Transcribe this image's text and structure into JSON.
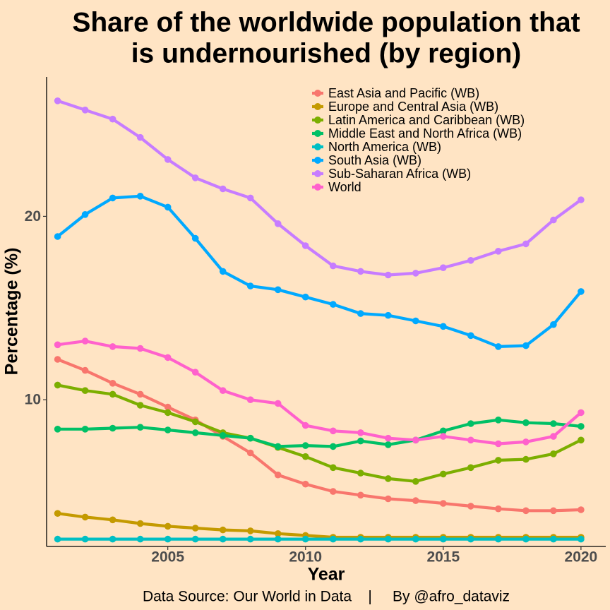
{
  "title_lines": [
    "Share of the worldwide population that",
    "is undernourished (by region)"
  ],
  "caption": "Data Source: Our World in Data    |     By @afro_dataviz",
  "chart_data": {
    "type": "line",
    "title": "Share of the worldwide population that is undernourished (by region)",
    "xlabel": "Year",
    "ylabel": "Percentage (%)",
    "xlim": [
      2000.6,
      2020.9
    ],
    "ylim": [
      2.0,
      27.6
    ],
    "x_ticks": [
      2005,
      2010,
      2015,
      2020
    ],
    "y_ticks": [
      10,
      20
    ],
    "grid": false,
    "legend_position": "top-right",
    "x": [
      2001,
      2002,
      2003,
      2004,
      2005,
      2006,
      2007,
      2008,
      2009,
      2010,
      2011,
      2012,
      2013,
      2014,
      2015,
      2016,
      2017,
      2018,
      2019,
      2020
    ],
    "series": [
      {
        "name": "East Asia and Pacific (WB)",
        "color": "#f8766d",
        "values": [
          12.2,
          11.6,
          10.9,
          10.3,
          9.6,
          8.9,
          8.0,
          7.1,
          5.9,
          5.4,
          5.0,
          4.8,
          4.6,
          4.5,
          4.35,
          4.2,
          4.05,
          3.95,
          3.95,
          4.0
        ]
      },
      {
        "name": "Europe and Central Asia (WB)",
        "color": "#c49a00",
        "values": [
          3.8,
          3.6,
          3.45,
          3.25,
          3.1,
          3.0,
          2.9,
          2.85,
          2.7,
          2.6,
          2.5,
          2.5,
          2.5,
          2.5,
          2.5,
          2.5,
          2.5,
          2.5,
          2.5,
          2.5
        ]
      },
      {
        "name": "Latin America and Caribbean (WB)",
        "color": "#7cae00",
        "values": [
          10.8,
          10.5,
          10.3,
          9.7,
          9.3,
          8.8,
          8.2,
          7.9,
          7.4,
          6.9,
          6.3,
          6.0,
          5.7,
          5.55,
          5.95,
          6.3,
          6.7,
          6.75,
          7.05,
          7.8
        ]
      },
      {
        "name": "Middle East and North Africa (WB)",
        "color": "#00c066",
        "values": [
          8.4,
          8.4,
          8.45,
          8.5,
          8.35,
          8.2,
          8.05,
          7.9,
          7.45,
          7.5,
          7.45,
          7.75,
          7.55,
          7.8,
          8.3,
          8.7,
          8.9,
          8.75,
          8.7,
          8.55
        ]
      },
      {
        "name": "North America (WB)",
        "color": "#00bfc4",
        "values": [
          2.4,
          2.4,
          2.4,
          2.4,
          2.4,
          2.4,
          2.4,
          2.4,
          2.4,
          2.4,
          2.4,
          2.4,
          2.4,
          2.4,
          2.4,
          2.4,
          2.4,
          2.4,
          2.4,
          2.4
        ]
      },
      {
        "name": "South Asia (WB)",
        "color": "#00a9ff",
        "values": [
          18.9,
          20.1,
          21.0,
          21.1,
          20.5,
          18.8,
          17.0,
          16.2,
          16.0,
          15.6,
          15.2,
          14.7,
          14.6,
          14.3,
          14.0,
          13.5,
          12.9,
          12.95,
          14.1,
          15.9
        ]
      },
      {
        "name": "Sub-Saharan Africa (WB)",
        "color": "#c77cff",
        "values": [
          26.3,
          25.8,
          25.3,
          24.3,
          23.1,
          22.1,
          21.5,
          21.0,
          19.6,
          18.4,
          17.3,
          17.0,
          16.8,
          16.9,
          17.2,
          17.6,
          18.1,
          18.5,
          19.8,
          20.9
        ]
      },
      {
        "name": "World",
        "color": "#ff61cc",
        "values": [
          13.0,
          13.2,
          12.9,
          12.8,
          12.3,
          11.5,
          10.5,
          10.0,
          9.8,
          8.6,
          8.3,
          8.2,
          7.9,
          7.8,
          8.0,
          7.8,
          7.6,
          7.7,
          8.0,
          9.3
        ]
      }
    ]
  }
}
